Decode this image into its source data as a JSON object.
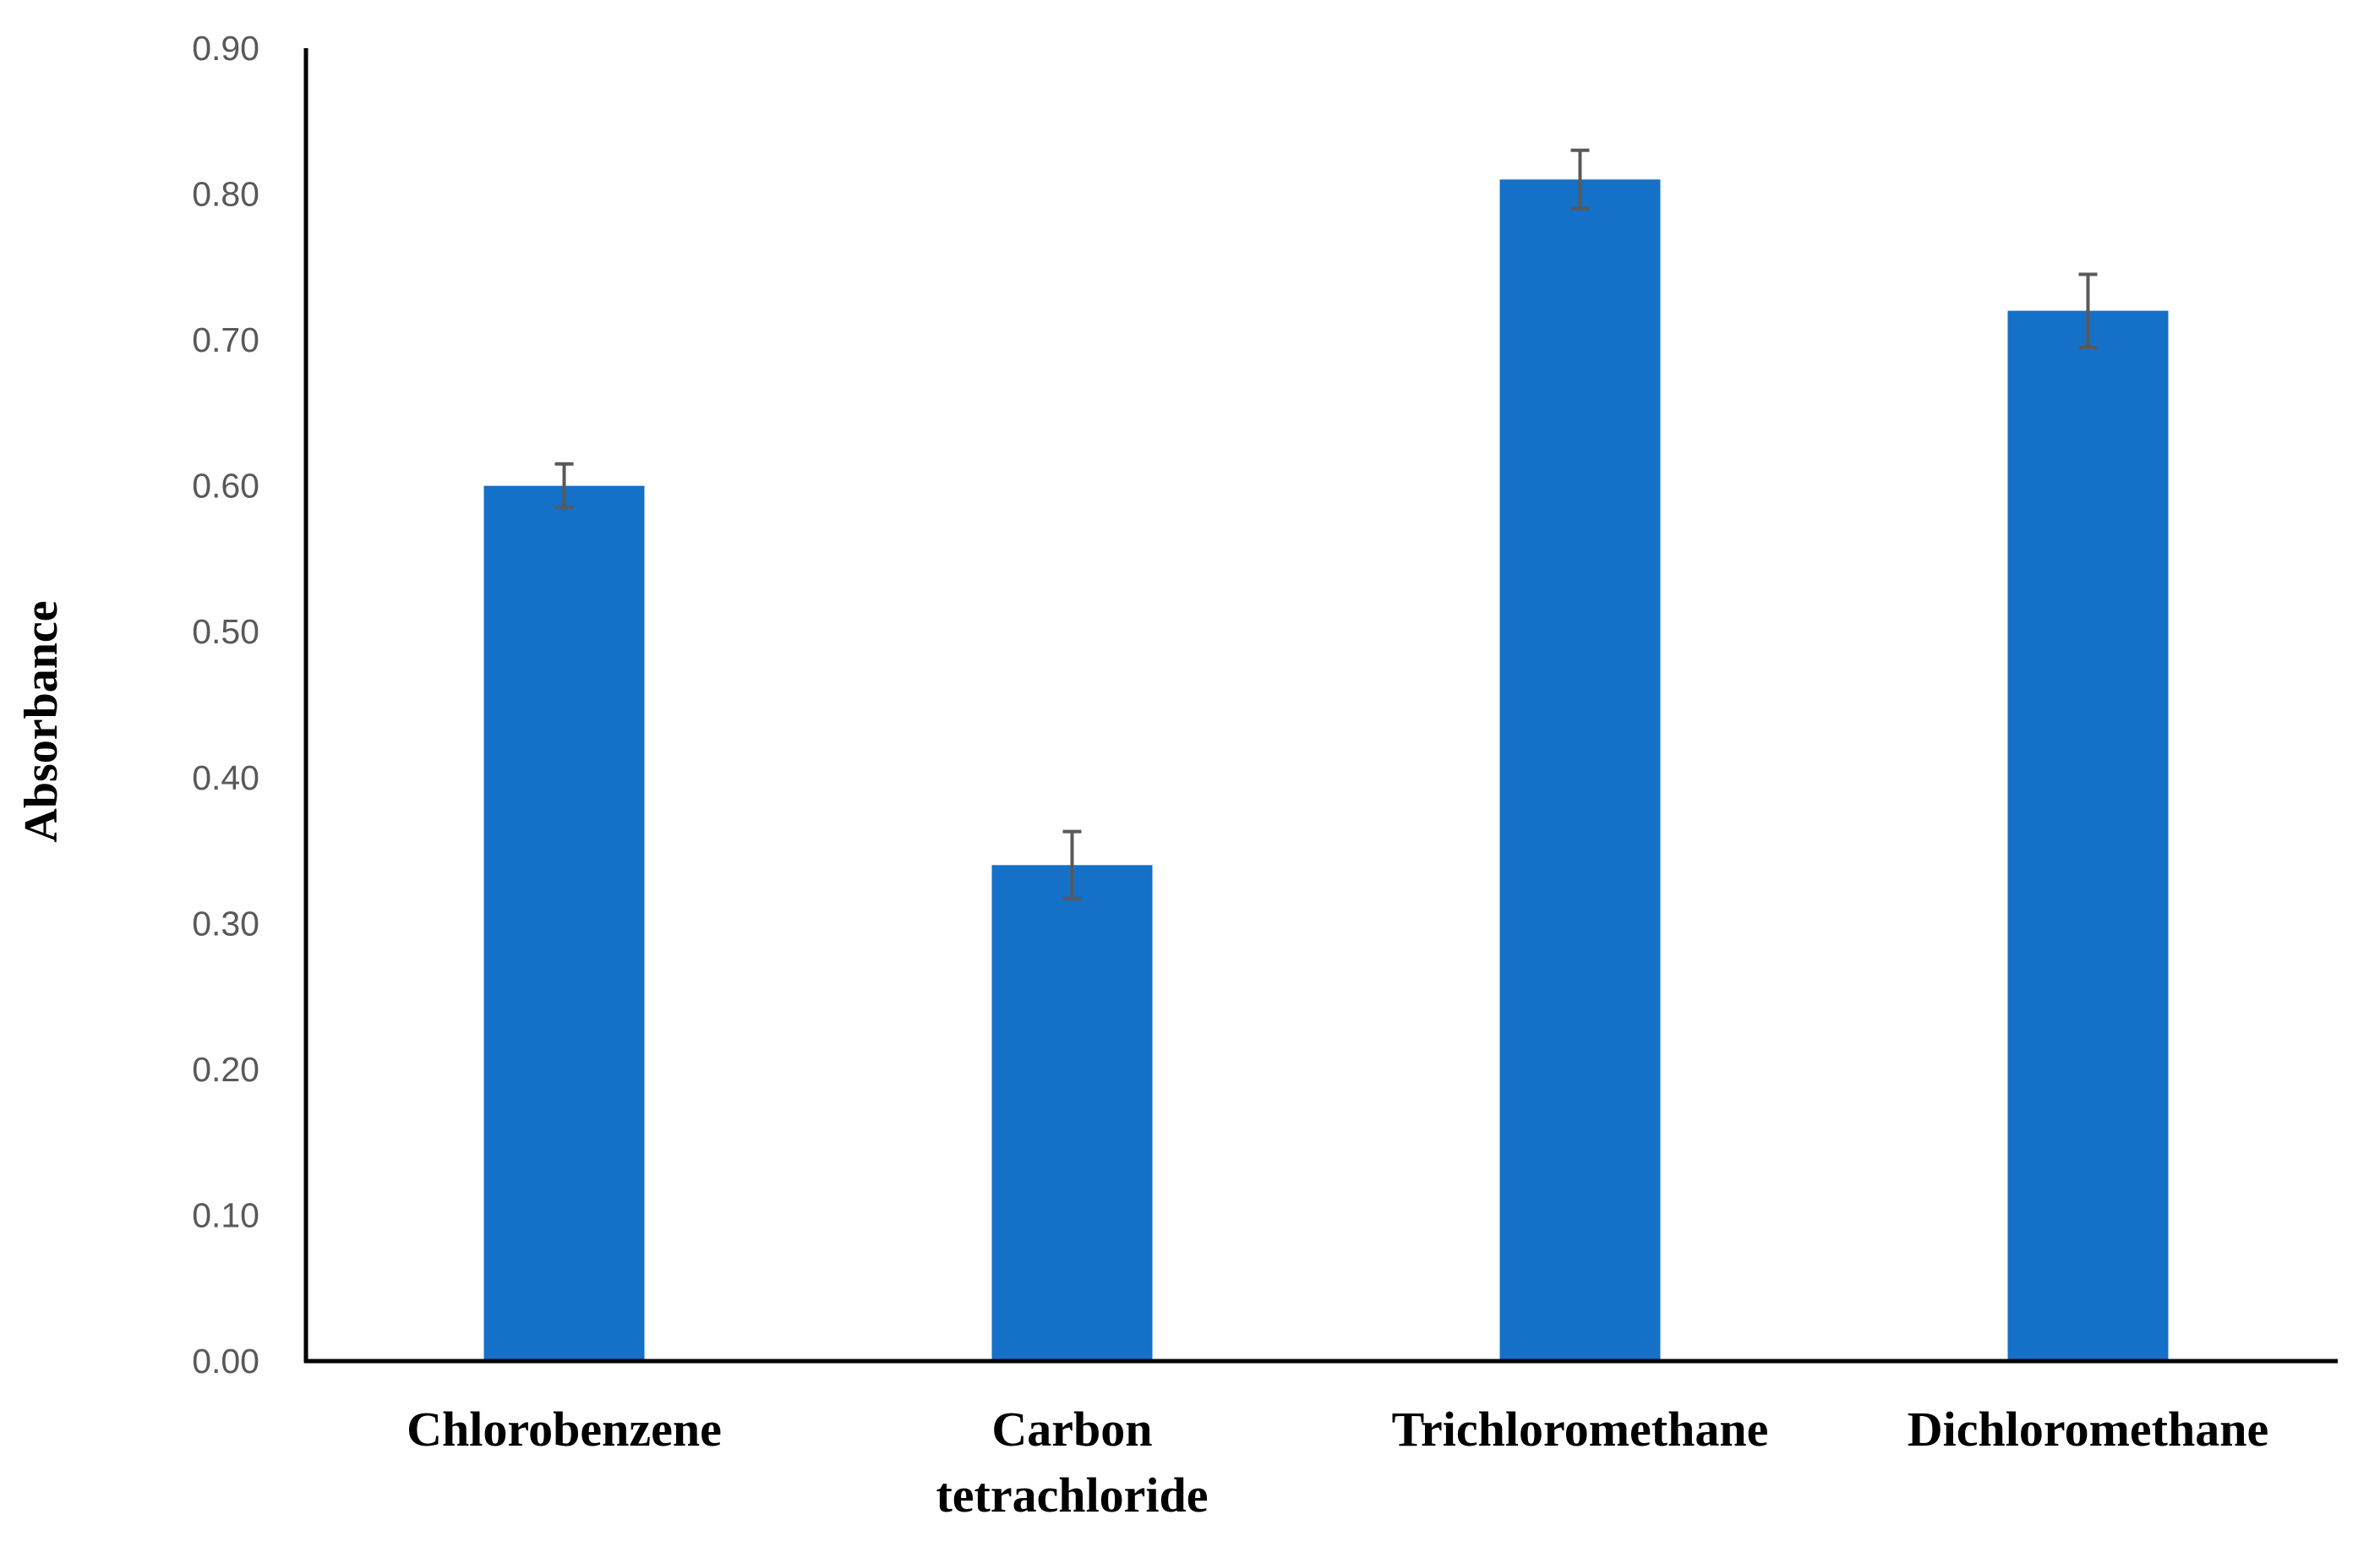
{
  "chart_data": {
    "type": "bar",
    "title": "",
    "xlabel": "",
    "ylabel": "Absorbance",
    "ylim": [
      0,
      0.9
    ],
    "yticks": [
      "0.00",
      "0.10",
      "0.20",
      "0.30",
      "0.40",
      "0.50",
      "0.60",
      "0.70",
      "0.80",
      "0.90"
    ],
    "categories": [
      [
        "Chlorobenzene"
      ],
      [
        "Carbon",
        "tetrachloride"
      ],
      [
        "Trichloromethane"
      ],
      [
        "Dichloromethane"
      ]
    ],
    "values": [
      0.6,
      0.34,
      0.81,
      0.72
    ],
    "error": [
      0.015,
      0.023,
      0.02,
      0.025
    ],
    "grid": false,
    "legend": "none",
    "colors": {
      "bar": "#1570C7",
      "error_bar": "#595959",
      "axis": "#000000",
      "tick_text": "#595959"
    }
  }
}
